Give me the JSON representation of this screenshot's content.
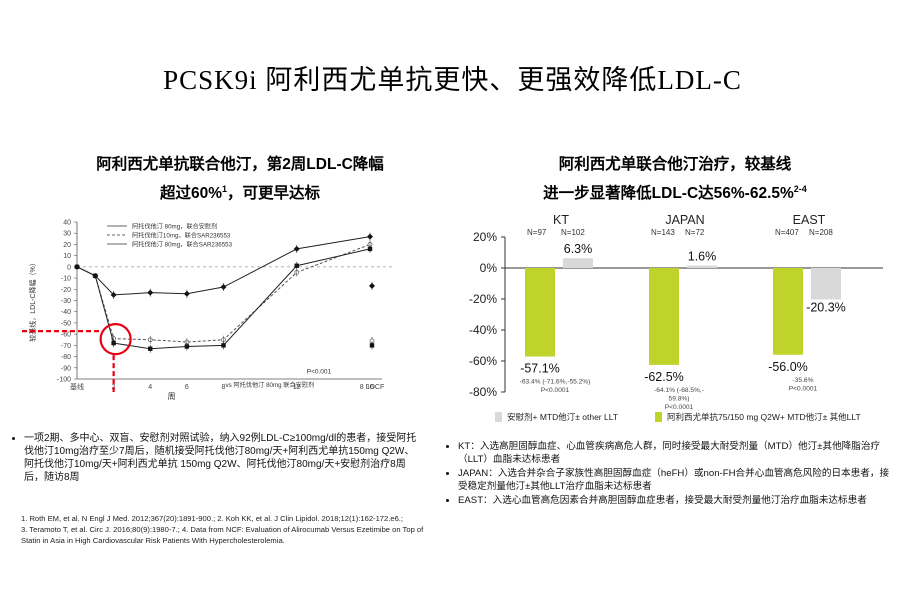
{
  "page_title": "PCSK9i 阿利西尤单抗更快、更强效降低LDL-C",
  "left_panel": {
    "subtitle_line1": "阿利西尤单抗联合他汀，第2周LDL-C降幅",
    "subtitle_line2_a": "超过60%",
    "subtitle_line2_sup": "1",
    "subtitle_line2_b": "，可更早达标",
    "bullet": "一项2期、多中心、双盲、安慰剂对照试验，纳入92例LDL-C≥100mg/dl的患者，接受阿托伐他汀10mg治疗至少7周后，随机接受阿托伐他汀80mg/天+阿利西尤单抗150mg Q2W、阿托伐他汀10mg/天+阿利西尤单抗 150mg Q2W、阿托伐他汀80mg/天+安慰剂治疗8周后，随访8周"
  },
  "right_panel": {
    "subtitle_line1": "阿利西尤单联合他汀治疗，较基线",
    "subtitle_line2": "进一步显著降低LDL-C达56%-62.5%",
    "subtitle_sup": "2-4",
    "notes": [
      "KT：入选高胆固醇血症、心血管疾病高危人群，同时接受最大耐受剂量（MTD）他汀±其他降脂治疗（LLT）血脂未达标患者",
      "JAPAN：入选合并杂合子家族性高胆固醇血症（heFH）或non-FH合并心血管高危风险的日本患者，接受稳定剂量他汀±其他LLT治疗血脂未达标患者",
      "EAST：入选心血管高危因素合并高胆固醇血症患者，接受最大耐受剂量他汀治疗血脂未达标患者"
    ]
  },
  "references": [
    "1. Roth EM, et al. N Engl J Med. 2012;367(20):1891-900.; 2. Koh KK, et al. J Clin Lipidol. 2018;12(1):162-172.e6.;",
    "3. Teramoto T, et al. Circ J. 2016;80(9):1980-7.; 4. Data from NCF: Evaluation of Alirocumab Versus Ezetimibe on Top of",
    "Statin in Asia in High Cardiovascular Risk Patients With Hypercholesterolemia."
  ],
  "chart_data": [
    {
      "type": "line",
      "ylabel": "较基线，LDL-C降幅（%）",
      "xlabel": "周",
      "x_ticks": [
        "基线",
        "2",
        "4",
        "6",
        "8",
        "12",
        "16",
        "8 LOCF"
      ],
      "y_ticks": [
        40,
        30,
        20,
        10,
        0,
        -10,
        -20,
        -30,
        -40,
        -50,
        -60,
        -70,
        -80,
        -90,
        -100
      ],
      "ylim": [
        -100,
        40
      ],
      "legend": [
        "阿托伐他汀 80mg，联合安慰剂",
        "阿托伐他汀10mg，联合SAR236553",
        "阿托伐他汀 80mg，联合SAR236553"
      ],
      "legend_placement": "top-left",
      "x_after_text": "vs 阿托伐他汀 80mg 联合安慰剂",
      "p_value": "P<0.001",
      "series": [
        {
          "name": "阿托伐他汀 80mg，联合安慰剂",
          "style": "solid-diamond",
          "x": [
            0,
            1,
            2,
            4,
            6,
            8,
            12,
            16
          ],
          "y": [
            0,
            -8,
            -25,
            -23,
            -24,
            -18,
            16,
            27
          ],
          "locf": -17
        },
        {
          "name": "阿托伐他汀10mg，联合SAR236553",
          "style": "dashed-open",
          "x": [
            0,
            1,
            2,
            4,
            6,
            8,
            12,
            16
          ],
          "y": [
            0,
            -8,
            -64,
            -65,
            -67,
            -65,
            -5,
            20
          ],
          "locf": -66
        },
        {
          "name": "阿托伐他汀 80mg，联合SAR236553",
          "style": "solid-square",
          "x": [
            0,
            1,
            2,
            4,
            6,
            8,
            12,
            16
          ],
          "y": [
            0,
            -8,
            -68,
            -73,
            -71,
            -70,
            1,
            16
          ],
          "locf": -70
        }
      ]
    },
    {
      "type": "bar",
      "categories": [
        "KT",
        "JAPAN",
        "EAST"
      ],
      "n_labels": [
        [
          "N=97",
          "N=102"
        ],
        [
          "N=143",
          "N=72"
        ],
        [
          "N=407",
          "N=208"
        ]
      ],
      "y_ticks": [
        "20%",
        "0%",
        "-20%",
        "-40%",
        "-60%",
        "-80%"
      ],
      "ylim": [
        -80,
        20
      ],
      "colors": {
        "alirocumab": "#bfd32a",
        "control": "#d9d9d9"
      },
      "legend": [
        "安慰剂+ MTD他汀± other LLT",
        "阿利西尤单抗75/150 mg Q2W+ MTD他汀± 其他LLT"
      ],
      "series": [
        {
          "name": "阿利西尤单抗75/150 mg Q2W+ MTD他汀± 其他LLT",
          "values": [
            -57.1,
            -62.5,
            -56.0
          ],
          "labels": [
            "-57.1%",
            "-62.5%",
            "-56.0%"
          ]
        },
        {
          "name": "安慰剂+ MTD他汀± other LLT",
          "values": [
            6.3,
            1.6,
            -20.3
          ],
          "labels": [
            "6.3%",
            "1.6%",
            "-20.3%"
          ]
        }
      ],
      "difference_labels": [
        [
          "-63.4% (-71.6%,-55.2%)",
          "P<0.0001"
        ],
        [
          "-64.1% (-68.5%,-",
          "59.8%)",
          "P<0.0001"
        ],
        [
          "-35.6%",
          "P<0.0001"
        ]
      ]
    }
  ]
}
